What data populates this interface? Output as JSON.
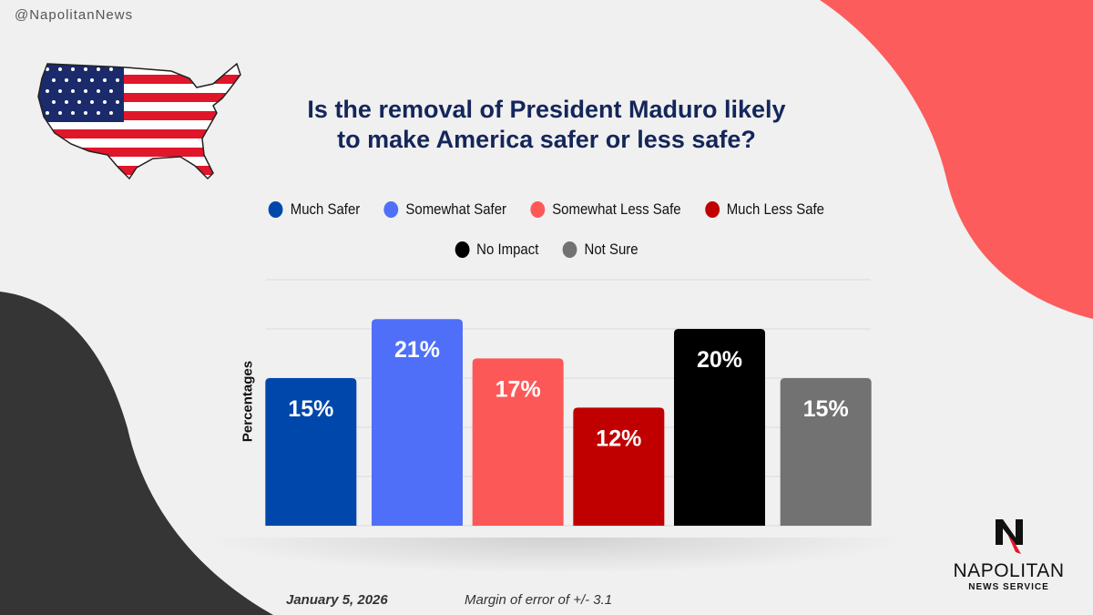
{
  "handle": "@NapolitanNews",
  "title_line1": "Is the removal of President Maduro likely",
  "title_line2": "to make America safer or less safe?",
  "footer": {
    "date": "January 5, 2026",
    "margin": "Margin of error of +/- 3.1"
  },
  "logo": {
    "name": "NAPOLITAN",
    "sub": "NEWS SERVICE"
  },
  "colors": {
    "background": "#f0f0f0",
    "coral": "#fd5c5c",
    "dark": "#353535",
    "title": "#14265a"
  },
  "chart_data": {
    "type": "bar",
    "title": "Is the removal of President Maduro likely to make America safer or less safe?",
    "categories": [
      "Much Safer",
      "Somewhat Safer",
      "Somewhat Less Safe",
      "Much Less Safe",
      "No Impact",
      "Not Sure"
    ],
    "values": [
      15,
      21,
      17,
      12,
      20,
      15
    ],
    "labels": [
      "15%",
      "21%",
      "17%",
      "12%",
      "20%",
      "15%"
    ],
    "colors": [
      "#0047ab",
      "#4f6ff9",
      "#fd5858",
      "#c00000",
      "#000000",
      "#727272"
    ],
    "xlabel": "",
    "ylabel": "Percentages",
    "ylim": [
      0,
      25
    ],
    "grid": true,
    "legend_placement": "top"
  }
}
